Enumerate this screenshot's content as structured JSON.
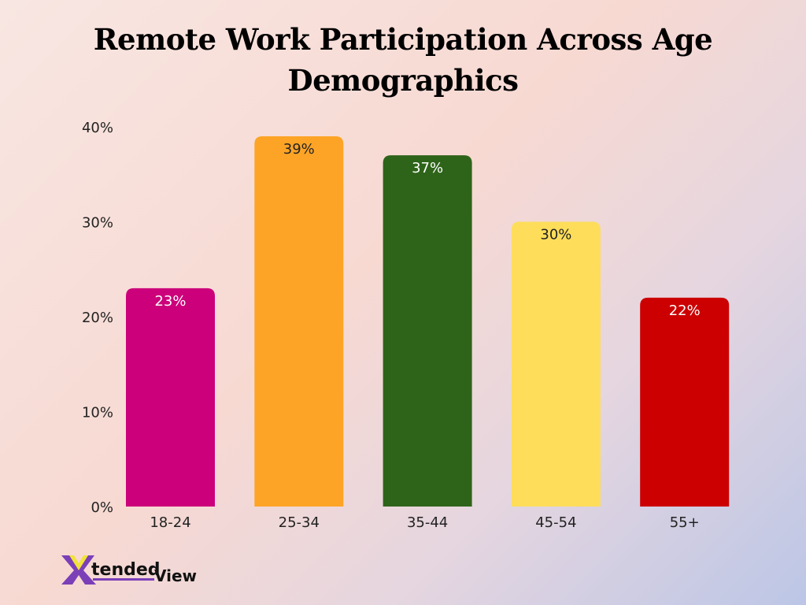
{
  "chart_data": {
    "type": "bar",
    "title_line1": "Remote Work Participation Across Age",
    "title_line2": "Demographics",
    "categories": [
      "18-24",
      "25-34",
      "35-44",
      "45-54",
      "55+"
    ],
    "values": [
      23,
      39,
      37,
      30,
      22
    ],
    "data_labels": [
      "23%",
      "39%",
      "37%",
      "30%",
      "22%"
    ],
    "colors": [
      "#cc007a",
      "#fda426",
      "#2e6419",
      "#fedd5a",
      "#cc0000"
    ],
    "label_colors": [
      "#ffffff",
      "#222222",
      "#ffffff",
      "#222222",
      "#ffffff"
    ],
    "yticks": [
      0,
      10,
      20,
      30,
      40
    ],
    "ytick_labels": [
      "0%",
      "10%",
      "20%",
      "30%",
      "40%"
    ],
    "ylim": [
      0,
      40
    ],
    "xlabel": "",
    "ylabel": "",
    "grid": false
  },
  "logo": {
    "text_x": "X",
    "text_tended": "tended",
    "text_view": "View"
  }
}
